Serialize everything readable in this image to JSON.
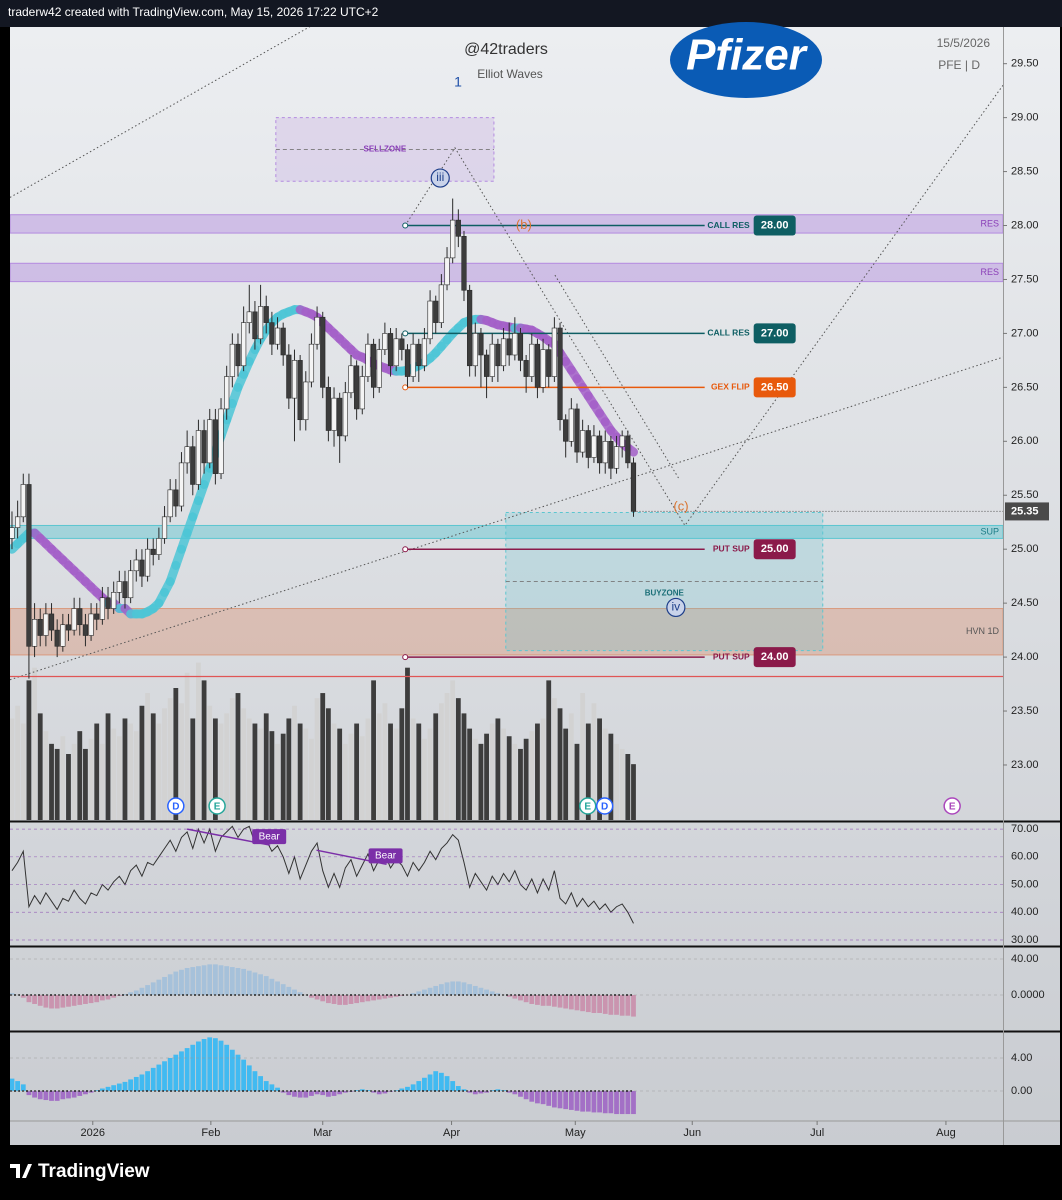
{
  "header": {
    "text": "traderw42 created with TradingView.com, May 15, 2026 17:22 UTC+2"
  },
  "footer": {
    "brand": "TradingView"
  },
  "chart_data": {
    "type": "candlestick",
    "title": "@42traders",
    "wave_count": "1",
    "subtitle": "Elliot Waves",
    "logo": "Pfizer",
    "date": "15/5/2026",
    "symbol": "PFE | D",
    "open": [
      25.1,
      25.2,
      25.3,
      25.6,
      24.1,
      24.35,
      24.2,
      24.4,
      24.25,
      24.1,
      24.3,
      24.25,
      24.45,
      24.3,
      24.2,
      24.4,
      24.35,
      24.55,
      24.45,
      24.6,
      24.7,
      24.55,
      24.8,
      24.9,
      24.75,
      25.0,
      24.95,
      25.1,
      25.3,
      25.55,
      25.4,
      25.8,
      25.95,
      25.6,
      26.1,
      25.8,
      26.2,
      25.7,
      26.3,
      26.6,
      26.9,
      26.7,
      27.1,
      27.2,
      26.95,
      27.25,
      27.1,
      26.9,
      27.05,
      26.8,
      26.4,
      26.75,
      26.2,
      26.55,
      26.9,
      27.15,
      26.5,
      26.1,
      26.4,
      26.05,
      26.45,
      26.7,
      26.3,
      26.6,
      26.9,
      26.5,
      26.85,
      27.0,
      26.7,
      26.95,
      26.85,
      26.6,
      26.9,
      26.7,
      26.95,
      27.3,
      27.1,
      27.45,
      27.7,
      28.05,
      27.9,
      27.4,
      26.7,
      27.0,
      26.8,
      26.6,
      26.9,
      26.7,
      26.95,
      26.8,
      27.0,
      26.75,
      26.6,
      26.9,
      26.5,
      26.85,
      26.6,
      27.05,
      26.2,
      26.0,
      26.3,
      25.9,
      26.1,
      25.85,
      26.05,
      25.8,
      26.0,
      25.75,
      25.95,
      26.05,
      25.8
    ],
    "high": [
      25.35,
      25.45,
      25.7,
      25.7,
      24.5,
      24.45,
      24.5,
      24.5,
      24.35,
      24.4,
      24.4,
      24.55,
      24.55,
      24.4,
      24.5,
      24.5,
      24.65,
      24.65,
      24.7,
      24.8,
      24.8,
      24.9,
      25.0,
      25.0,
      25.1,
      25.1,
      25.2,
      25.4,
      25.65,
      25.65,
      25.9,
      26.1,
      26.05,
      26.2,
      26.2,
      26.3,
      26.3,
      26.4,
      26.7,
      27.0,
      27.0,
      27.25,
      27.45,
      27.3,
      27.45,
      27.35,
      27.2,
      27.15,
      27.1,
      26.9,
      26.85,
      26.8,
      26.65,
      27.0,
      27.25,
      27.2,
      26.6,
      26.5,
      26.45,
      26.55,
      26.8,
      26.75,
      26.7,
      27.0,
      26.95,
      26.95,
      27.1,
      27.05,
      27.05,
      27.0,
      26.9,
      27.0,
      26.95,
      27.05,
      27.4,
      27.35,
      27.55,
      27.8,
      28.25,
      28.15,
      27.95,
      27.45,
      27.1,
      27.05,
      26.85,
      27.0,
      26.95,
      27.05,
      27.1,
      27.15,
      27.05,
      26.8,
      27.0,
      26.95,
      26.95,
      26.9,
      27.15,
      27.1,
      26.25,
      26.4,
      26.35,
      26.2,
      26.15,
      26.15,
      26.1,
      26.1,
      26.05,
      26.05,
      26.1,
      26.1,
      25.85
    ],
    "low": [
      25.0,
      25.1,
      25.25,
      23.8,
      24.0,
      24.1,
      24.1,
      24.15,
      24.0,
      24.05,
      24.15,
      24.2,
      24.2,
      24.1,
      24.15,
      24.25,
      24.3,
      24.35,
      24.4,
      24.5,
      24.45,
      24.5,
      24.7,
      24.65,
      24.7,
      24.85,
      24.9,
      25.05,
      25.25,
      25.3,
      25.35,
      25.7,
      25.5,
      25.55,
      25.7,
      25.75,
      25.6,
      25.65,
      26.2,
      26.5,
      26.6,
      26.65,
      27.0,
      26.85,
      26.9,
      27.0,
      26.8,
      26.85,
      26.7,
      26.3,
      26.0,
      26.1,
      26.1,
      26.5,
      26.85,
      26.4,
      26.0,
      25.95,
      25.8,
      26.0,
      26.4,
      26.2,
      26.25,
      26.55,
      26.4,
      26.45,
      26.8,
      26.6,
      26.65,
      26.75,
      26.5,
      26.55,
      26.55,
      26.65,
      26.9,
      27.0,
      27.05,
      27.4,
      27.65,
      27.8,
      27.3,
      26.6,
      26.6,
      26.5,
      26.4,
      26.55,
      26.55,
      26.65,
      26.7,
      26.75,
      26.65,
      26.45,
      26.55,
      26.4,
      26.45,
      26.5,
      26.55,
      26.1,
      25.85,
      25.95,
      25.8,
      25.85,
      25.75,
      25.8,
      25.7,
      25.7,
      25.65,
      25.7,
      25.85,
      25.75,
      25.3
    ],
    "close": [
      25.2,
      25.3,
      25.6,
      24.1,
      24.35,
      24.2,
      24.4,
      24.25,
      24.1,
      24.3,
      24.25,
      24.45,
      24.3,
      24.2,
      24.4,
      24.35,
      24.55,
      24.45,
      24.6,
      24.7,
      24.55,
      24.8,
      24.9,
      24.75,
      25.0,
      24.95,
      25.1,
      25.3,
      25.55,
      25.4,
      25.8,
      25.95,
      25.6,
      26.1,
      25.8,
      26.2,
      25.7,
      26.3,
      26.6,
      26.9,
      26.7,
      27.1,
      27.2,
      26.95,
      27.25,
      27.1,
      26.9,
      27.05,
      26.8,
      26.4,
      26.75,
      26.2,
      26.55,
      26.9,
      27.15,
      26.5,
      26.1,
      26.4,
      26.05,
      26.45,
      26.7,
      26.3,
      26.6,
      26.9,
      26.5,
      26.85,
      27.0,
      26.7,
      26.95,
      26.85,
      26.6,
      26.9,
      26.7,
      26.95,
      27.3,
      27.1,
      27.45,
      27.7,
      28.05,
      27.9,
      27.4,
      26.7,
      27.0,
      26.8,
      26.6,
      26.9,
      26.7,
      26.95,
      26.8,
      27.0,
      26.75,
      26.6,
      26.9,
      26.5,
      26.85,
      26.6,
      27.05,
      26.2,
      26.0,
      26.3,
      25.9,
      26.1,
      25.85,
      26.05,
      25.8,
      26.0,
      25.75,
      25.95,
      26.05,
      25.8,
      25.35
    ],
    "up_color": "#f4f4f4",
    "down_color": "#3c3c3c",
    "xlim": [
      -0.35,
      175.4
    ],
    "xticks": [
      {
        "value": 14.3,
        "label": "2026"
      },
      {
        "value": 35.2,
        "label": "Feb"
      },
      {
        "value": 55.0,
        "label": "Mar"
      },
      {
        "value": 77.8,
        "label": "Apr"
      },
      {
        "value": 99.7,
        "label": "May"
      },
      {
        "value": 120.4,
        "label": "Jun"
      },
      {
        "value": 142.5,
        "label": "Jul"
      },
      {
        "value": 165.3,
        "label": "Aug"
      }
    ],
    "ylim": [
      22.49,
      29.84
    ],
    "yticks": [
      {
        "value": 29.5,
        "label": "29.50"
      },
      {
        "value": 29,
        "label": "29.00"
      },
      {
        "value": 28.5,
        "label": "28.50"
      },
      {
        "value": 28,
        "label": "28.00"
      },
      {
        "value": 27.5,
        "label": "27.50"
      },
      {
        "value": 27,
        "label": "27.00"
      },
      {
        "value": 26.5,
        "label": "26.50"
      },
      {
        "value": 26,
        "label": "26.00"
      },
      {
        "value": 25.5,
        "label": "25.50"
      },
      {
        "value": 25,
        "label": "25.00"
      },
      {
        "value": 24.5,
        "label": "24.50"
      },
      {
        "value": 24,
        "label": "24.00"
      },
      {
        "value": 23.5,
        "label": "23.50"
      },
      {
        "value": 23,
        "label": "23.00"
      }
    ],
    "last_price": {
      "value": 25.35,
      "label": "25.35"
    },
    "ma": {
      "up_color": "#4cc6d6",
      "down_color": "#a35fc8",
      "values": [
        25.0,
        25.05,
        25.1,
        25.15,
        25.15,
        25.1,
        25.05,
        25.0,
        24.95,
        24.9,
        24.85,
        24.8,
        24.75,
        24.7,
        24.65,
        24.6,
        24.55,
        24.5,
        24.5,
        24.45,
        24.45,
        24.4,
        24.4,
        24.4,
        24.42,
        24.45,
        24.5,
        24.6,
        24.7,
        24.85,
        25.0,
        25.15,
        25.3,
        25.45,
        25.6,
        25.75,
        25.9,
        26.05,
        26.2,
        26.35,
        26.5,
        26.62,
        26.74,
        26.85,
        26.95,
        27.03,
        27.1,
        27.15,
        27.18,
        27.2,
        27.22,
        27.22,
        27.2,
        27.18,
        27.15,
        27.1,
        27.05,
        27.0,
        26.95,
        26.9,
        26.85,
        26.8,
        26.78,
        26.75,
        26.72,
        26.7,
        26.68,
        26.66,
        26.65,
        26.65,
        26.66,
        26.68,
        26.7,
        26.73,
        26.77,
        26.82,
        26.88,
        26.94,
        27.0,
        27.05,
        27.1,
        27.12,
        27.13,
        27.13,
        27.12,
        27.1,
        27.08,
        27.07,
        27.06,
        27.05,
        27.05,
        27.04,
        27.03,
        27.0,
        26.97,
        26.93,
        26.9,
        26.82,
        26.74,
        26.66,
        26.58,
        26.5,
        26.42,
        26.34,
        26.26,
        26.18,
        26.1,
        26.04,
        25.98,
        25.94,
        25.9
      ]
    },
    "zones": [
      {
        "name": "RES",
        "low": 27.93,
        "high": 28.1,
        "color": "#b48be0"
      },
      {
        "name": "RES",
        "low": 27.48,
        "high": 27.65,
        "color": "#b48be0"
      },
      {
        "name": "SUP",
        "low": 25.1,
        "high": 25.22,
        "color": "#5cc6d0"
      },
      {
        "name": "HVN 1D",
        "low": 24.02,
        "high": 24.45,
        "color": "#d99a7e"
      }
    ],
    "boxes": [
      {
        "name": "SELLZONE",
        "x": [
          46.7,
          85.3
        ],
        "y": [
          28.41,
          29.0
        ],
        "color": "#b48be0"
      },
      {
        "name": "BUYZONE",
        "x": [
          87.4,
          143.5
        ],
        "y": [
          24.06,
          25.34
        ],
        "color": "#5cc6d0"
      }
    ],
    "levels": [
      {
        "name": "CALL RES",
        "value": 28,
        "label": "28.00",
        "color": "#0e5e63",
        "start": 69.6,
        "end": 122.6
      },
      {
        "name": "CALL RES",
        "value": 27,
        "label": "27.00",
        "color": "#0e5e63",
        "start": 69.6,
        "end": 122.6
      },
      {
        "name": "GEX FLIP",
        "value": 26.5,
        "label": "26.50",
        "color": "#e8590c",
        "start": 69.6,
        "end": 122.6
      },
      {
        "name": "PUT SUP",
        "value": 25,
        "label": "25.00",
        "color": "#8b1a4a",
        "start": 69.6,
        "end": 122.6
      },
      {
        "name": "PUT SUP",
        "value": 24,
        "label": "24.00",
        "color": "#8b1a4a",
        "start": 69.6,
        "end": 122.6
      }
    ],
    "waves": [
      {
        "label": "iii",
        "x": 75.8,
        "y": 28.44,
        "circled": true
      },
      {
        "label": "(b)",
        "x": 90.6,
        "y": 28.0,
        "circled": false
      },
      {
        "label": "(c)",
        "x": 118.4,
        "y": 25.39,
        "circled": false
      },
      {
        "label": "iv",
        "x": 117.5,
        "y": 24.46,
        "circled": true
      }
    ],
    "trendlines": [
      {
        "x": [
          -0.35,
          56.3
        ],
        "y": [
          28.26,
          29.95
        ]
      },
      {
        "x": [
          -0.35,
          175.4
        ],
        "y": [
          23.79,
          26.78
        ]
      },
      {
        "x": [
          69.6,
          78.4,
          119.1,
          175.4
        ],
        "y": [
          28.0,
          28.72,
          25.22,
          29.3
        ]
      },
      {
        "x": [
          96.1,
          118.2
        ],
        "y": [
          27.54,
          25.64
        ]
      }
    ],
    "stop_line": {
      "value": 23.82,
      "color": "#e05555"
    },
    "events": [
      {
        "label": "D",
        "x": 29.0,
        "color": "#2962ff"
      },
      {
        "label": "E",
        "x": 36.3,
        "color": "#26a69a"
      },
      {
        "label": "E",
        "x": 101.9,
        "color": "#26a69a"
      },
      {
        "label": "D",
        "x": 104.9,
        "color": "#2962ff"
      },
      {
        "label": "E",
        "x": 166.4,
        "color": "#ab47bc"
      }
    ],
    "volume": {
      "ylim": [
        0,
        65
      ],
      "values": [
        40,
        45,
        38,
        55,
        60,
        42,
        35,
        30,
        28,
        33,
        26,
        30,
        35,
        28,
        32,
        38,
        30,
        42,
        36,
        33,
        40,
        38,
        35,
        45,
        50,
        42,
        38,
        44,
        48,
        52,
        46,
        58,
        40,
        62,
        55,
        45,
        40,
        38,
        42,
        48,
        50,
        44,
        40,
        38,
        36,
        42,
        35,
        30,
        34,
        40,
        45,
        38,
        36,
        32,
        48,
        50,
        44,
        38,
        36,
        30,
        34,
        38,
        33,
        40,
        55,
        42,
        46,
        38,
        36,
        44,
        60,
        40,
        38,
        32,
        36,
        42,
        46,
        50,
        55,
        48,
        42,
        36,
        32,
        30,
        34,
        38,
        40,
        36,
        33,
        30,
        28,
        32,
        35,
        38,
        40,
        55,
        48,
        44,
        36,
        42,
        30,
        50,
        38,
        46,
        40,
        36,
        34,
        30,
        28,
        26,
        22
      ]
    },
    "rsi": {
      "color": "#333333",
      "ylim": [
        28.2,
        72.2
      ],
      "yticks": [
        {
          "value": 70,
          "label": "70.00"
        },
        {
          "value": 60,
          "label": "60.00"
        },
        {
          "value": 50,
          "label": "50.00"
        },
        {
          "value": 40,
          "label": "40.00"
        },
        {
          "value": 30,
          "label": "30.00"
        }
      ],
      "values": [
        55,
        58,
        62,
        42,
        46,
        43,
        47,
        44,
        41,
        45,
        44,
        48,
        45,
        43,
        47,
        46,
        50,
        48,
        51,
        53,
        50,
        55,
        57,
        53,
        58,
        57,
        60,
        63,
        66,
        62,
        67,
        69,
        63,
        70,
        65,
        70,
        62,
        67,
        69,
        71,
        67,
        70,
        71,
        65,
        69,
        66,
        62,
        64,
        60,
        54,
        60,
        52,
        57,
        62,
        65,
        55,
        49,
        54,
        49,
        56,
        59,
        53,
        57,
        61,
        55,
        59,
        61,
        56,
        59,
        57,
        53,
        58,
        55,
        58,
        62,
        59,
        63,
        65,
        68,
        66,
        58,
        49,
        54,
        51,
        48,
        53,
        50,
        54,
        51,
        55,
        50,
        48,
        52,
        47,
        52,
        48,
        55,
        45,
        43,
        47,
        42,
        45,
        42,
        44,
        41,
        43,
        40,
        42,
        43,
        40,
        36
      ],
      "divergences": [
        {
          "label": "Bear",
          "x": [
            31.0,
            45.7
          ],
          "y": [
            70,
            64.2
          ],
          "color": "#7b2fa8"
        },
        {
          "label": "Bear",
          "x": [
            53.9,
            66.3
          ],
          "y": [
            62.4,
            57.3
          ],
          "color": "#7b2fa8"
        }
      ]
    },
    "macd": {
      "pos_color": "#9fbedb",
      "neg_color": "#c98aa8",
      "ylim": [
        -38.9,
        52.2
      ],
      "yticks": [
        {
          "value": 40,
          "label": "40.00"
        },
        {
          "value": 0,
          "label": "0.0000"
        }
      ],
      "values": [
        2,
        0,
        -3,
        -8,
        -10,
        -12,
        -14,
        -15,
        -15,
        -14,
        -13,
        -12,
        -11,
        -10,
        -9,
        -8,
        -6,
        -5,
        -3,
        -1,
        1,
        3,
        5,
        8,
        11,
        14,
        17,
        20,
        23,
        26,
        28,
        30,
        31,
        32,
        33,
        34,
        34,
        33,
        32,
        31,
        30,
        29,
        27,
        25,
        23,
        21,
        18,
        15,
        12,
        9,
        6,
        3,
        0,
        -3,
        -5,
        -7,
        -9,
        -10,
        -11,
        -11,
        -10,
        -9,
        -8,
        -7,
        -6,
        -5,
        -4,
        -3,
        -2,
        -1,
        0,
        2,
        4,
        6,
        8,
        10,
        12,
        14,
        15,
        15,
        14,
        12,
        10,
        8,
        6,
        4,
        2,
        0,
        -2,
        -4,
        -6,
        -8,
        -10,
        -11,
        -12,
        -12,
        -13,
        -14,
        -15,
        -16,
        -17,
        -18,
        -19,
        -20,
        -20,
        -21,
        -22,
        -22,
        -23,
        -23,
        -24
      ]
    },
    "osc": {
      "pos_color": "#29b6f6",
      "neg_color": "#9c5fc4",
      "ylim": [
        -3.52,
        7.03
      ],
      "yticks": [
        {
          "value": 4,
          "label": "4.00"
        },
        {
          "value": 0,
          "label": "0.00"
        }
      ],
      "values": [
        1.5,
        1.2,
        0.8,
        -0.5,
        -0.8,
        -1.0,
        -1.1,
        -1.2,
        -1.2,
        -1.0,
        -0.9,
        -0.8,
        -0.6,
        -0.4,
        -0.2,
        0.1,
        0.3,
        0.5,
        0.7,
        0.9,
        1.1,
        1.4,
        1.7,
        2.0,
        2.4,
        2.8,
        3.2,
        3.6,
        4.0,
        4.4,
        4.8,
        5.2,
        5.6,
        6.0,
        6.3,
        6.5,
        6.4,
        6.1,
        5.6,
        5.0,
        4.4,
        3.8,
        3.1,
        2.4,
        1.8,
        1.2,
        0.8,
        0.4,
        -0.2,
        -0.5,
        -0.7,
        -0.8,
        -0.8,
        -0.6,
        -0.4,
        -0.5,
        -0.7,
        -0.6,
        -0.4,
        -0.2,
        -0.1,
        0.1,
        0.2,
        0.1,
        -0.2,
        -0.4,
        -0.3,
        -0.1,
        0.1,
        0.3,
        0.5,
        0.8,
        1.2,
        1.6,
        2.0,
        2.4,
        2.2,
        1.8,
        1.2,
        0.6,
        0.2,
        -0.2,
        -0.4,
        -0.3,
        -0.2,
        0.1,
        0.2,
        0.1,
        -0.2,
        -0.4,
        -0.7,
        -1.0,
        -1.3,
        -1.5,
        -1.6,
        -1.8,
        -2.0,
        -2.1,
        -2.2,
        -2.3,
        -2.4,
        -2.5,
        -2.5,
        -2.6,
        -2.6,
        -2.7,
        -2.7,
        -2.8,
        -2.8,
        -2.8,
        -2.8
      ]
    }
  }
}
